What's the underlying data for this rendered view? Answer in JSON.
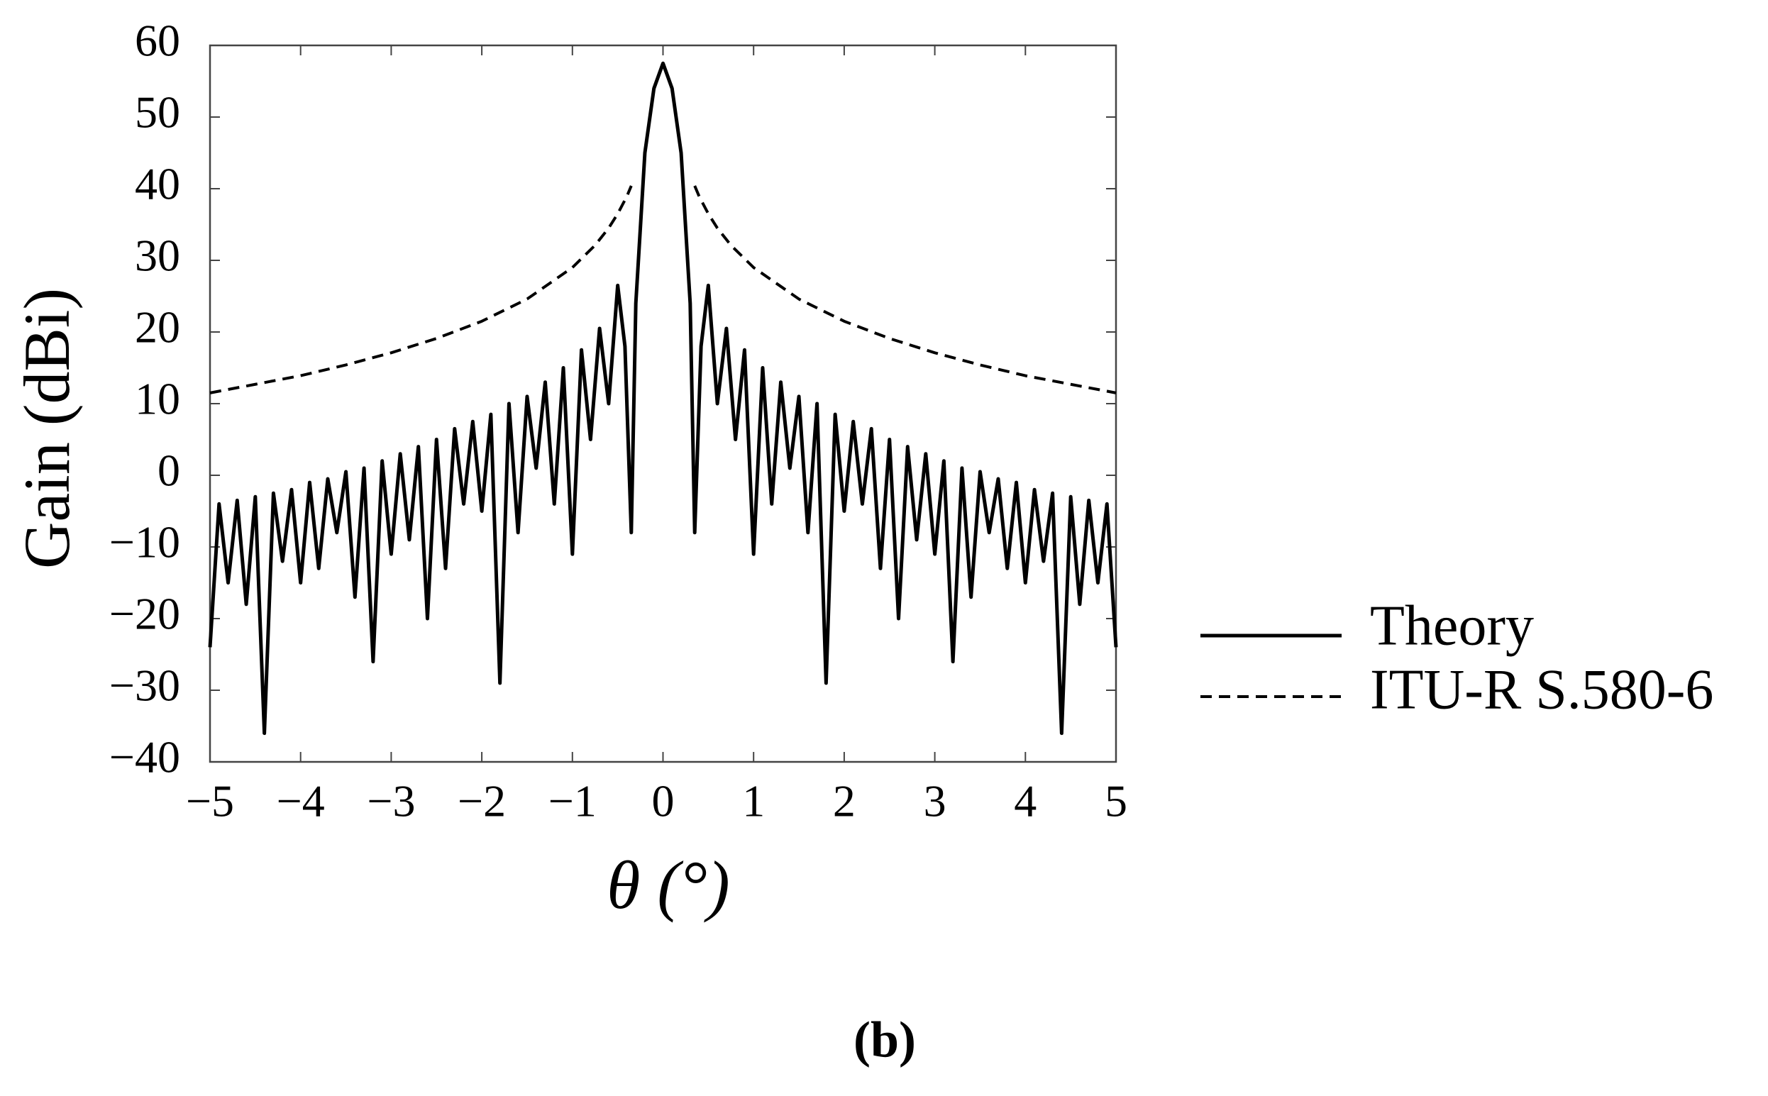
{
  "chart_data": {
    "type": "line",
    "xlabel": "θ (°)",
    "ylabel": "Gain (dBi)",
    "caption": "(b)",
    "xlim": [
      -5,
      5
    ],
    "xticks": [
      {
        "value": -5,
        "label": "−5"
      },
      {
        "value": -4,
        "label": "−4"
      },
      {
        "value": -3,
        "label": "−3"
      },
      {
        "value": -2,
        "label": "−2"
      },
      {
        "value": -1,
        "label": "−1"
      },
      0,
      1,
      2,
      3,
      4,
      5
    ],
    "ylim": [
      -40,
      60
    ],
    "yticks": [
      {
        "value": -40,
        "label": "−40"
      },
      {
        "value": -30,
        "label": "−30"
      },
      {
        "value": -20,
        "label": "−20"
      },
      {
        "value": -10,
        "label": "−10"
      },
      0,
      10,
      20,
      30,
      40,
      50,
      60
    ],
    "legend": "right",
    "series": [
      {
        "name": "Theory",
        "color": "#000000",
        "linestyle": "solid",
        "x": [
          -5,
          -4.9,
          -4.8,
          -4.7,
          -4.6,
          -4.5,
          -4.4,
          -4.3,
          -4.2,
          -4.1,
          -4,
          -3.9,
          -3.8,
          -3.7,
          -3.6,
          -3.5,
          -3.4,
          -3.3,
          -3.2,
          -3.1,
          -3,
          -2.9,
          -2.8,
          -2.7,
          -2.6,
          -2.5,
          -2.4,
          -2.3,
          -2.2,
          -2.1,
          -2,
          -1.9,
          -1.8,
          -1.7,
          -1.6,
          -1.5,
          -1.4,
          -1.3,
          -1.2,
          -1.1,
          -1,
          -0.9,
          -0.8,
          -0.7,
          -0.6,
          -0.5,
          -0.42,
          -0.35,
          -0.3,
          -0.2,
          -0.1,
          0,
          0.1,
          0.2,
          0.3,
          0.35,
          0.42,
          0.5,
          0.6,
          0.7,
          0.8,
          0.9,
          1,
          1.1,
          1.2,
          1.3,
          1.4,
          1.5,
          1.6,
          1.7,
          1.8,
          1.9,
          2,
          2.1,
          2.2,
          2.3,
          2.4,
          2.5,
          2.6,
          2.7,
          2.8,
          2.9,
          3,
          3.1,
          3.2,
          3.3,
          3.4,
          3.5,
          3.6,
          3.7,
          3.8,
          3.9,
          4,
          4.1,
          4.2,
          4.3,
          4.4,
          4.5,
          4.6,
          4.7,
          4.8,
          4.9,
          5
        ],
        "values": [
          -24,
          -4,
          -15,
          -3.5,
          -18,
          -3,
          -36,
          -2.5,
          -12,
          -2,
          -15,
          -1,
          -13,
          -0.5,
          -8,
          0.5,
          -17,
          1,
          -26,
          2,
          -11,
          3,
          -9,
          4,
          -20,
          5,
          -13,
          6.5,
          -4,
          7.5,
          -5,
          8.5,
          -29,
          10,
          -8,
          11,
          1,
          13,
          -4,
          15,
          -11,
          17.5,
          5,
          20.5,
          10,
          26.5,
          18,
          -8,
          24,
          45,
          54,
          57.5,
          54,
          45,
          24,
          -8,
          18,
          26.5,
          10,
          20.5,
          5,
          17.5,
          -11,
          15,
          -4,
          13,
          1,
          11,
          -8,
          10,
          -29,
          8.5,
          -5,
          7.5,
          -4,
          6.5,
          -13,
          5,
          -20,
          4,
          -9,
          3,
          -11,
          2,
          -26,
          1,
          -17,
          0.5,
          -8,
          -0.5,
          -13,
          -1,
          -15,
          -2,
          -12,
          -2.5,
          -36,
          -3,
          -18,
          -3.5,
          -15,
          -4,
          -24
        ]
      },
      {
        "name": "ITU-R S.580-6",
        "color": "#000000",
        "linestyle": "dashed",
        "x": [
          -5,
          -4.5,
          -4,
          -3.5,
          -3,
          -2.5,
          -2,
          -1.5,
          -1,
          -0.75,
          -0.6,
          -0.5,
          -0.4,
          -0.35,
          0,
          0.35,
          0.4,
          0.5,
          0.6,
          0.75,
          1,
          1.5,
          2,
          2.5,
          3,
          3.5,
          4,
          4.5,
          5
        ],
        "values": [
          11.5,
          12.7,
          13.9,
          15.4,
          17.1,
          19.1,
          21.5,
          24.6,
          29,
          32.1,
          34.5,
          36.5,
          38.9,
          40.4,
          null,
          40.4,
          38.9,
          36.5,
          34.5,
          32.1,
          29,
          24.6,
          21.5,
          19.1,
          17.1,
          15.4,
          13.9,
          12.7,
          11.5
        ]
      }
    ]
  }
}
